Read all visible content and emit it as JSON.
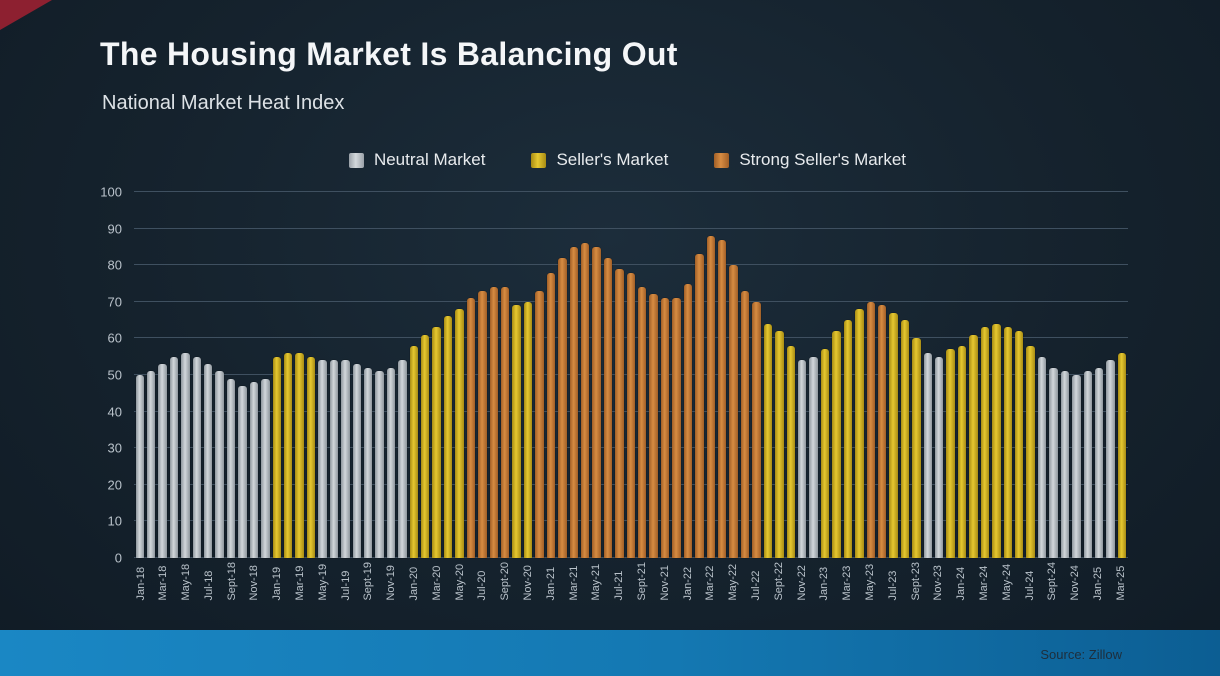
{
  "title": "The Housing Market Is Balancing Out",
  "subtitle": "National Market Heat Index",
  "source": "Source: Zillow",
  "colors": {
    "background": "#15222d",
    "neutral": "#c3c8cd",
    "seller": "#d9b81f",
    "strong": "#cb7f33",
    "bottom_band_start": "#1a87c4",
    "bottom_band_end": "#0c5e93"
  },
  "chart_data": {
    "type": "bar",
    "title": "National Market Heat Index",
    "xlabel": "",
    "ylabel": "",
    "ylim": [
      0,
      100
    ],
    "yticks": [
      0,
      10,
      20,
      30,
      40,
      50,
      60,
      70,
      80,
      90,
      100
    ],
    "grid": true,
    "legend_position": "top",
    "legend": [
      {
        "label": "Neutral Market",
        "key": "neutral"
      },
      {
        "label": "Seller's Market",
        "key": "seller"
      },
      {
        "label": "Strong Seller's Market",
        "key": "strong"
      }
    ],
    "category_codes": {
      "n": "Neutral Market",
      "s": "Seller's Market",
      "x": "Strong Seller's Market"
    },
    "xtick_every": 2,
    "x": [
      "Jan-18",
      "Feb-18",
      "Mar-18",
      "Apr-18",
      "May-18",
      "Jun-18",
      "Jul-18",
      "Aug-18",
      "Sept-18",
      "Oct-18",
      "Nov-18",
      "Dec-18",
      "Jan-19",
      "Feb-19",
      "Mar-19",
      "Apr-19",
      "May-19",
      "Jun-19",
      "Jul-19",
      "Aug-19",
      "Sept-19",
      "Oct-19",
      "Nov-19",
      "Dec-19",
      "Jan-20",
      "Feb-20",
      "Mar-20",
      "Apr-20",
      "May-20",
      "Jun-20",
      "Jul-20",
      "Aug-20",
      "Sept-20",
      "Oct-20",
      "Nov-20",
      "Dec-20",
      "Jan-21",
      "Feb-21",
      "Mar-21",
      "Apr-21",
      "May-21",
      "Jun-21",
      "Jul-21",
      "Aug-21",
      "Sept-21",
      "Oct-21",
      "Nov-21",
      "Dec-21",
      "Jan-22",
      "Feb-22",
      "Mar-22",
      "Apr-22",
      "May-22",
      "Jun-22",
      "Jul-22",
      "Aug-22",
      "Sept-22",
      "Oct-22",
      "Nov-22",
      "Dec-22",
      "Jan-23",
      "Feb-23",
      "Mar-23",
      "Apr-23",
      "May-23",
      "Jun-23",
      "Jul-23",
      "Aug-23",
      "Sept-23",
      "Oct-23",
      "Nov-23",
      "Dec-23",
      "Jan-24",
      "Feb-24",
      "Mar-24",
      "Apr-24",
      "May-24",
      "Jun-24",
      "Jul-24",
      "Aug-24",
      "Sept-24",
      "Oct-24",
      "Nov-24",
      "Dec-24",
      "Jan-25",
      "Feb-25",
      "Mar-25"
    ],
    "values": [
      50,
      51,
      53,
      55,
      56,
      55,
      53,
      51,
      49,
      47,
      48,
      49,
      55,
      56,
      56,
      55,
      54,
      54,
      54,
      53,
      52,
      51,
      52,
      54,
      58,
      61,
      63,
      66,
      68,
      71,
      73,
      74,
      74,
      69,
      70,
      73,
      78,
      82,
      85,
      86,
      85,
      82,
      79,
      78,
      74,
      72,
      71,
      71,
      75,
      83,
      88,
      87,
      80,
      73,
      70,
      64,
      62,
      58,
      54,
      55,
      57,
      62,
      65,
      68,
      70,
      69,
      67,
      65,
      60,
      56,
      55,
      57,
      58,
      61,
      63,
      64,
      63,
      62,
      58,
      55,
      52,
      51,
      50,
      51,
      52,
      54,
      56
    ],
    "bar_categories": [
      "n",
      "n",
      "n",
      "n",
      "n",
      "n",
      "n",
      "n",
      "n",
      "n",
      "n",
      "n",
      "s",
      "s",
      "s",
      "s",
      "n",
      "n",
      "n",
      "n",
      "n",
      "n",
      "n",
      "n",
      "s",
      "s",
      "s",
      "s",
      "s",
      "x",
      "x",
      "x",
      "x",
      "s",
      "s",
      "x",
      "x",
      "x",
      "x",
      "x",
      "x",
      "x",
      "x",
      "x",
      "x",
      "x",
      "x",
      "x",
      "x",
      "x",
      "x",
      "x",
      "x",
      "x",
      "x",
      "s",
      "s",
      "s",
      "n",
      "n",
      "s",
      "s",
      "s",
      "s",
      "x",
      "x",
      "s",
      "s",
      "s",
      "n",
      "n",
      "s",
      "s",
      "s",
      "s",
      "s",
      "s",
      "s",
      "s",
      "n",
      "n",
      "n",
      "n",
      "n",
      "n",
      "n",
      "s"
    ]
  }
}
